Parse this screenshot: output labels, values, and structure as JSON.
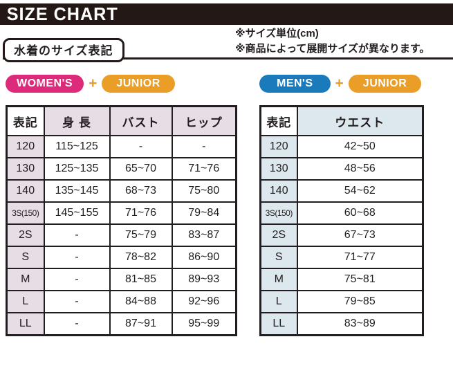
{
  "page": {
    "title": "SIZE CHART",
    "section_label": "水着のサイズ表記",
    "notes": [
      "※サイズ単位(cm)",
      "※商品によって展開サイズが異なります。"
    ]
  },
  "badges": {
    "womens": "WOMEN'S",
    "mens": "MEN'S",
    "junior": "JUNIOR",
    "plus": "+"
  },
  "colors": {
    "bar-black": "#231815",
    "womens-pink": "#dd2a7b",
    "junior-orange": "#eb9e27",
    "mens-blue": "#1a7abc",
    "women-head": "#e6dde5",
    "men-head": "#dce8ee"
  },
  "chart_data": [
    {
      "type": "table",
      "title": "WOMEN'S + JUNIOR",
      "headers": [
        "表記",
        "身 長",
        "バスト",
        "ヒップ"
      ],
      "rows": [
        [
          "120",
          "115~125",
          "-",
          "-"
        ],
        [
          "130",
          "125~135",
          "65~70",
          "71~76"
        ],
        [
          "140",
          "135~145",
          "68~73",
          "75~80"
        ],
        [
          "3S(150)",
          "145~155",
          "71~76",
          "79~84"
        ],
        [
          "2S",
          "-",
          "75~79",
          "83~87"
        ],
        [
          "S",
          "-",
          "78~82",
          "86~90"
        ],
        [
          "M",
          "-",
          "81~85",
          "89~93"
        ],
        [
          "L",
          "-",
          "84~88",
          "92~96"
        ],
        [
          "LL",
          "-",
          "87~91",
          "95~99"
        ]
      ]
    },
    {
      "type": "table",
      "title": "MEN'S + JUNIOR",
      "headers": [
        "表記",
        "ウエスト"
      ],
      "rows": [
        [
          "120",
          "42~50"
        ],
        [
          "130",
          "48~56"
        ],
        [
          "140",
          "54~62"
        ],
        [
          "3S(150)",
          "60~68"
        ],
        [
          "2S",
          "67~73"
        ],
        [
          "S",
          "71~77"
        ],
        [
          "M",
          "75~81"
        ],
        [
          "L",
          "79~85"
        ],
        [
          "LL",
          "83~89"
        ]
      ]
    }
  ]
}
